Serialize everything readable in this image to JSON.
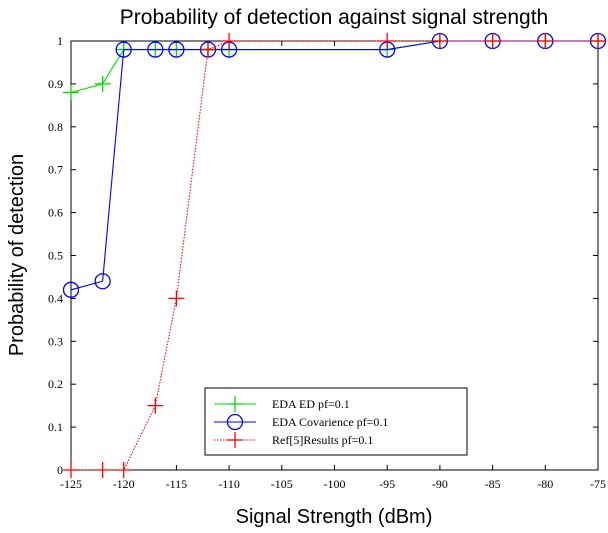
{
  "chart_data": {
    "type": "line",
    "title": "Probability of detection against signal strength",
    "xlabel": "Signal Strength (dBm)",
    "ylabel": "Probability of detection",
    "xlim": [
      -125,
      -75
    ],
    "ylim": [
      0,
      1
    ],
    "xticks": [
      -125,
      -120,
      -115,
      -110,
      -105,
      -100,
      -95,
      -90,
      -85,
      -80,
      -75
    ],
    "yticks": [
      0,
      0.1,
      0.2,
      0.3,
      0.4,
      0.5,
      0.6,
      0.7,
      0.8,
      0.9,
      1
    ],
    "grid": false,
    "legend_position": "bottom-center",
    "series": [
      {
        "name": "EDA ED pf=0.1",
        "color": "#00dd00",
        "marker": "plus",
        "line": "solid",
        "x": [
          -125,
          -122,
          -120,
          -117,
          -115,
          -112,
          -110,
          -95,
          -90,
          -85,
          -80,
          -75
        ],
        "y": [
          0.88,
          0.9,
          0.98,
          0.98,
          0.98,
          0.98,
          0.98,
          0.98,
          1,
          1,
          1,
          1
        ]
      },
      {
        "name": "EDA Covarience pf=0.1",
        "color": "#0000ff",
        "marker": "circle",
        "line": "solid",
        "x": [
          -125,
          -122,
          -120,
          -117,
          -115,
          -112,
          -110,
          -95,
          -90,
          -85,
          -80,
          -75
        ],
        "y": [
          0.42,
          0.44,
          0.98,
          0.98,
          0.98,
          0.98,
          0.98,
          0.98,
          1,
          1,
          1,
          1
        ]
      },
      {
        "name": "Ref[5]Results pf=0.1",
        "color": "#ff0000",
        "marker": "plus",
        "line": "dotted",
        "x": [
          -125,
          -122,
          -120,
          -117,
          -115,
          -112,
          -110,
          -95,
          -90,
          -85,
          -80,
          -75
        ],
        "y": [
          0,
          0,
          0,
          0.15,
          0.4,
          0.98,
          1,
          1,
          1,
          1,
          1,
          1
        ]
      }
    ]
  }
}
